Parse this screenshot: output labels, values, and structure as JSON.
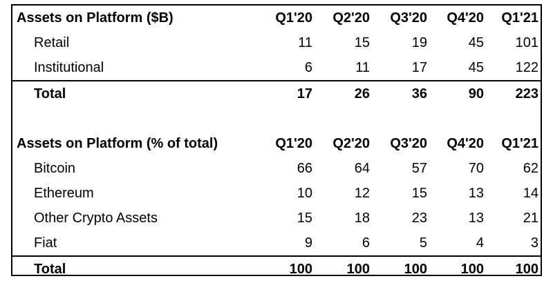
{
  "aop_usd": {
    "header": [
      "Assets on Platform ($B)",
      "Q1'20",
      "Q2'20",
      "Q3'20",
      "Q4'20",
      "Q1'21"
    ],
    "rows": [
      {
        "label": "Retail",
        "values": [
          "11",
          "15",
          "19",
          "45",
          "101"
        ]
      },
      {
        "label": "Institutional",
        "values": [
          "6",
          "11",
          "17",
          "45",
          "122"
        ]
      }
    ],
    "total": {
      "label": "Total",
      "values": [
        "17",
        "26",
        "36",
        "90",
        "223"
      ]
    }
  },
  "aop_pct": {
    "header": [
      "Assets on Platform (% of total)",
      "Q1'20",
      "Q2'20",
      "Q3'20",
      "Q4'20",
      "Q1'21"
    ],
    "rows": [
      {
        "label": "Bitcoin",
        "values": [
          "66",
          "64",
          "57",
          "70",
          "62"
        ]
      },
      {
        "label": "Ethereum",
        "values": [
          "10",
          "12",
          "15",
          "13",
          "14"
        ]
      },
      {
        "label": "Other Crypto Assets",
        "values": [
          "15",
          "18",
          "23",
          "13",
          "21"
        ]
      },
      {
        "label": "Fiat",
        "values": [
          "9",
          "6",
          "5",
          "4",
          "3"
        ]
      }
    ],
    "total": {
      "label": "Total",
      "values": [
        "100",
        "100",
        "100",
        "100",
        "100"
      ]
    }
  }
}
